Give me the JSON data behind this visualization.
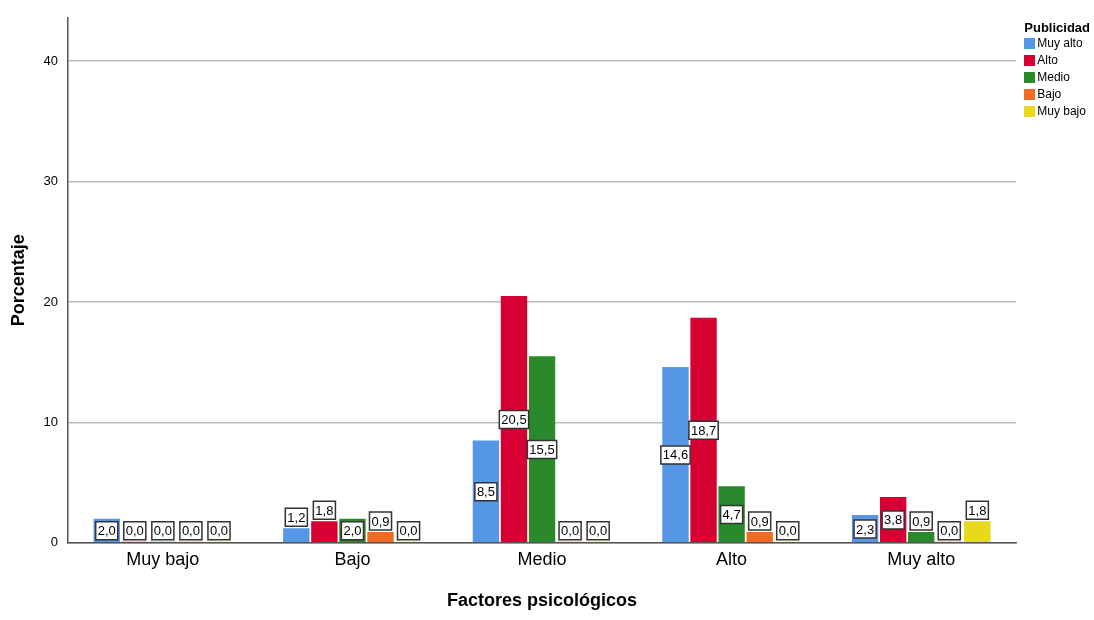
{
  "chart_data": {
    "type": "bar",
    "xlabel": "Factores psicológicos",
    "ylabel": "Porcentaje",
    "legend_title": "Publicidad",
    "legend": "top right",
    "grid": "y",
    "categories": [
      "Muy bajo",
      "Bajo",
      "Medio",
      "Alto",
      "Muy alto"
    ],
    "ylim": [
      0,
      43.6
    ],
    "yticks": [
      0,
      10,
      20,
      30,
      40
    ],
    "series": [
      {
        "name": "Muy alto",
        "color": "#5596e6",
        "values": [
          2.0,
          1.2,
          8.5,
          14.6,
          2.3
        ],
        "value_labels": [
          "2,0",
          "1,2",
          "8,5",
          "14,6",
          "2,3"
        ]
      },
      {
        "name": "Alto",
        "color": "#d70033",
        "values": [
          0.0,
          1.8,
          20.5,
          18.7,
          3.8
        ],
        "value_labels": [
          "0,0",
          "1,8",
          "20,5",
          "18,7",
          "3,8"
        ]
      },
      {
        "name": "Medio",
        "color": "#2a8a2b",
        "values": [
          0.0,
          2.0,
          15.5,
          4.7,
          0.9
        ],
        "value_labels": [
          "0,0",
          "2,0",
          "15,5",
          "4,7",
          "0,9"
        ]
      },
      {
        "name": "Bajo",
        "color": "#f26b25",
        "values": [
          0.0,
          0.9,
          0.0,
          0.9,
          0.0
        ],
        "value_labels": [
          "0,0",
          "0,9",
          "0,0",
          "0,9",
          "0,0"
        ]
      },
      {
        "name": "Muy bajo",
        "color": "#e8d81e",
        "values": [
          0.0,
          0.0,
          0.0,
          0.0,
          1.8
        ],
        "value_labels": [
          "0,0",
          "0,0",
          "0,0",
          "0,0",
          "1,8"
        ]
      }
    ]
  }
}
